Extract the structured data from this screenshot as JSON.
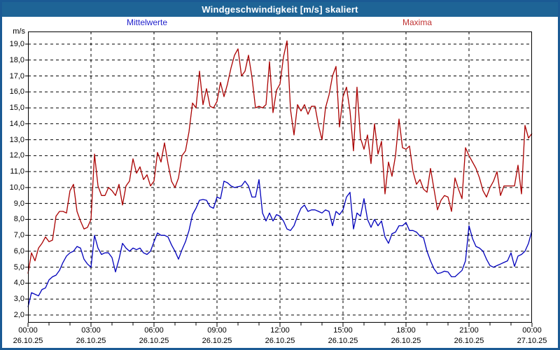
{
  "window": {
    "title": "Windgeschwindigkeit [m/s] skaliert",
    "titlebar_color": "#1e6496",
    "border_color": "#1b5a94"
  },
  "legend": {
    "mean_label": "Mittelwerte",
    "mean_color": "#2323cc",
    "max_label": "Maxima",
    "max_color": "#c03333"
  },
  "axes": {
    "y_unit": "m/s",
    "y_ticks": [
      {
        "v": 19,
        "label": "19,0"
      },
      {
        "v": 18,
        "label": "18,0"
      },
      {
        "v": 17,
        "label": "17,0"
      },
      {
        "v": 16,
        "label": "16,0"
      },
      {
        "v": 15,
        "label": "15,0"
      },
      {
        "v": 14,
        "label": "14,0"
      },
      {
        "v": 13,
        "label": "13,0"
      },
      {
        "v": 12,
        "label": "12,0"
      },
      {
        "v": 11,
        "label": "11,0"
      },
      {
        "v": 10,
        "label": "10,0"
      },
      {
        "v": 9,
        "label": "9,0"
      },
      {
        "v": 8,
        "label": "8,0"
      },
      {
        "v": 7,
        "label": "7,0"
      },
      {
        "v": 6,
        "label": "6,0"
      },
      {
        "v": 5,
        "label": "5,0"
      },
      {
        "v": 4,
        "label": "4,0"
      },
      {
        "v": 3,
        "label": "3,0"
      },
      {
        "v": 2,
        "label": "2,0"
      }
    ],
    "x_ticks": [
      {
        "h": 0,
        "time": "00:00",
        "date": "26.10.25"
      },
      {
        "h": 3,
        "time": "03:00",
        "date": "26.10.25"
      },
      {
        "h": 6,
        "time": "06:00",
        "date": "26.10.25"
      },
      {
        "h": 9,
        "time": "09:00",
        "date": "26.10.25"
      },
      {
        "h": 12,
        "time": "12:00",
        "date": "26.10.25"
      },
      {
        "h": 15,
        "time": "15:00",
        "date": "26.10.25"
      },
      {
        "h": 18,
        "time": "18:00",
        "date": "26.10.25"
      },
      {
        "h": 21,
        "time": "21:00",
        "date": "26.10.25"
      },
      {
        "h": 24,
        "time": "00:00",
        "date": "27.10.25"
      }
    ],
    "x_gridline_hours": [
      3,
      6,
      9,
      12,
      15,
      18,
      21
    ],
    "grid_dashed": true
  },
  "chart_data": {
    "type": "line",
    "title": "Windgeschwindigkeit [m/s] skaliert",
    "xlabel": "",
    "ylabel": "m/s",
    "x_start_hour": 0,
    "x_end_hour": 24,
    "step_minutes": 10,
    "ylim": [
      2,
      19
    ],
    "grid": true,
    "legend_position": "top",
    "series": [
      {
        "name": "Mittelwerte",
        "color": "#0000bb",
        "values": [
          2.5,
          3.4,
          3.3,
          3.2,
          3.6,
          3.7,
          4.2,
          4.4,
          4.5,
          4.8,
          5.3,
          5.7,
          5.9,
          6.0,
          6.3,
          6.2,
          5.5,
          5.2,
          5.0,
          7.0,
          6.2,
          5.8,
          5.9,
          5.9,
          5.6,
          4.7,
          5.5,
          6.5,
          6.2,
          6.0,
          6.2,
          6.1,
          6.2,
          5.9,
          5.8,
          6.0,
          6.6,
          7.15,
          7.0,
          7.0,
          6.9,
          6.4,
          6.0,
          5.5,
          6.1,
          6.6,
          7.3,
          8.3,
          8.7,
          9.2,
          9.25,
          9.2,
          8.8,
          8.7,
          9.4,
          9.3,
          10.4,
          10.3,
          10.1,
          10.0,
          10.05,
          10.1,
          10.4,
          10.1,
          9.4,
          9.4,
          10.5,
          8.4,
          7.9,
          8.4,
          7.9,
          8.3,
          8.2,
          7.9,
          7.4,
          7.3,
          7.6,
          8.2,
          8.7,
          8.9,
          8.5,
          8.6,
          8.6,
          8.5,
          8.4,
          8.6,
          8.5,
          7.6,
          8.5,
          8.3,
          8.6,
          9.4,
          9.7,
          7.4,
          8.4,
          8.2,
          9.3,
          8.0,
          7.5,
          8.0,
          7.6,
          7.9,
          6.9,
          6.5,
          7.1,
          7.2,
          7.6,
          7.6,
          7.8,
          7.3,
          7.3,
          7.2,
          6.95,
          6.85,
          6.0,
          5.4,
          4.9,
          4.6,
          4.65,
          4.75,
          4.7,
          4.4,
          4.4,
          4.6,
          4.8,
          5.4,
          7.6,
          6.8,
          6.3,
          6.2,
          6.0,
          5.5,
          5.1,
          5.0,
          5.1,
          5.2,
          5.3,
          5.4,
          5.9,
          5.05,
          5.7,
          5.8,
          6.0,
          6.5,
          7.3
        ]
      },
      {
        "name": "Maxima",
        "color": "#aa0000",
        "values": [
          4.6,
          5.9,
          5.4,
          6.2,
          6.5,
          6.9,
          6.6,
          6.7,
          8.2,
          8.5,
          8.5,
          8.4,
          9.8,
          10.2,
          8.5,
          7.9,
          7.4,
          7.5,
          8.0,
          12.1,
          10.1,
          9.5,
          9.5,
          10.0,
          9.8,
          9.5,
          10.2,
          8.9,
          10.1,
          10.4,
          11.8,
          10.9,
          11.3,
          10.5,
          10.8,
          10.1,
          10.4,
          12.2,
          11.6,
          12.8,
          11.5,
          10.4,
          10.0,
          10.6,
          12.0,
          12.3,
          13.5,
          15.3,
          15.0,
          17.3,
          15.2,
          16.2,
          15.1,
          15.0,
          15.4,
          16.6,
          15.7,
          16.5,
          17.5,
          18.3,
          18.7,
          17.0,
          17.3,
          18.3,
          16.9,
          15.0,
          15.1,
          15.0,
          15.2,
          17.9,
          14.7,
          16.1,
          16.5,
          18.2,
          19.2,
          14.9,
          13.3,
          15.2,
          14.8,
          15.2,
          14.6,
          15.1,
          15.1,
          13.9,
          13.0,
          15.0,
          15.8,
          17.0,
          17.6,
          13.8,
          15.7,
          16.3,
          14.8,
          12.3,
          16.3,
          13.1,
          12.4,
          13.3,
          11.5,
          14.0,
          12.1,
          12.9,
          9.6,
          11.6,
          10.7,
          12.0,
          14.3,
          12.5,
          12.4,
          12.6,
          11.0,
          10.2,
          10.5,
          9.9,
          9.7,
          11.2,
          9.9,
          8.6,
          9.2,
          9.5,
          9.4,
          8.5,
          10.6,
          9.9,
          9.3,
          12.5,
          12.0,
          11.6,
          11.2,
          10.6,
          9.8,
          9.4,
          10.0,
          10.4,
          11.0,
          9.5,
          10.1,
          10.1,
          10.1,
          10.1,
          11.4,
          9.6,
          13.9,
          13.1,
          13.4
        ]
      }
    ]
  }
}
